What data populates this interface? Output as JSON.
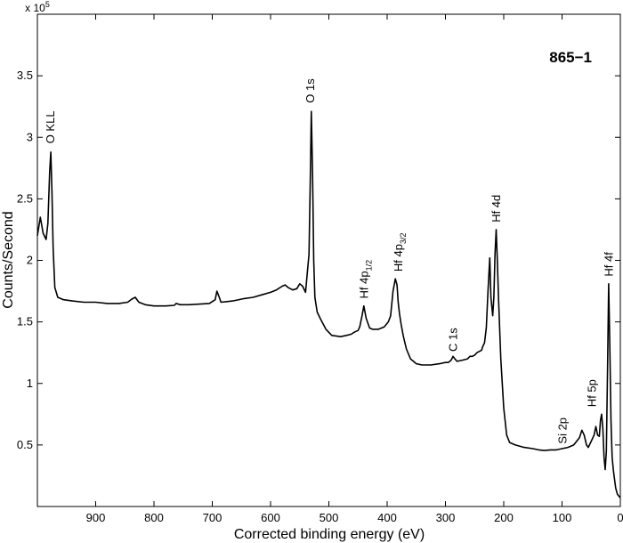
{
  "chart_data": {
    "type": "line",
    "title": "",
    "sample_label": "865−1",
    "xlabel": "Corrected binding energy (eV)",
    "ylabel": "Counts/Second",
    "y_multiplier_label": "x 10",
    "y_multiplier_exp": "5",
    "xlim": [
      1000,
      0
    ],
    "ylim": [
      0,
      4.0
    ],
    "x_reversed": true,
    "x_ticks": [
      900,
      800,
      700,
      600,
      500,
      400,
      300,
      200,
      100,
      0
    ],
    "y_ticks": [
      0.5,
      1,
      1.5,
      2,
      2.5,
      3,
      3.5
    ],
    "grid": false,
    "line_color": "#000000",
    "series": [
      {
        "x": [
          1000,
          995,
          990,
          985,
          982,
          979,
          977,
          975,
          973,
          970,
          965,
          955,
          940,
          920,
          900,
          880,
          860,
          845,
          838,
          832,
          826,
          815,
          800,
          780,
          765,
          762,
          755,
          740,
          705,
          695,
          692,
          688,
          685,
          665,
          645,
          630,
          615,
          600,
          590,
          580,
          575,
          570,
          562,
          555,
          550,
          545,
          540,
          537,
          534,
          532,
          530,
          528,
          526,
          524,
          520,
          515,
          505,
          495,
          480,
          470,
          462,
          455,
          450,
          447,
          443,
          440,
          436,
          430,
          425,
          415,
          405,
          398,
          394,
          390,
          386,
          383,
          381,
          379,
          376,
          372,
          367,
          360,
          350,
          340,
          325,
          310,
          300,
          295,
          290,
          287,
          284,
          280,
          270,
          262,
          258,
          254,
          250,
          246,
          242,
          238,
          236,
          233,
          230,
          227,
          224,
          222,
          219,
          217,
          215,
          213,
          211,
          209,
          205,
          200,
          195,
          190,
          180,
          165,
          150,
          140,
          130,
          120,
          110,
          100,
          90,
          80,
          75,
          70,
          66,
          62,
          58,
          55,
          50,
          45,
          42,
          39,
          36,
          34,
          32,
          30,
          28,
          26,
          24,
          22,
          20,
          18,
          16,
          14,
          12,
          10,
          8,
          5,
          0
        ],
        "y": [
          2.2,
          2.35,
          2.22,
          2.17,
          2.3,
          2.72,
          2.88,
          2.55,
          2.1,
          1.78,
          1.7,
          1.68,
          1.67,
          1.66,
          1.66,
          1.65,
          1.65,
          1.66,
          1.685,
          1.7,
          1.66,
          1.64,
          1.63,
          1.63,
          1.635,
          1.65,
          1.64,
          1.64,
          1.65,
          1.68,
          1.75,
          1.7,
          1.66,
          1.67,
          1.69,
          1.7,
          1.72,
          1.74,
          1.76,
          1.79,
          1.8,
          1.78,
          1.76,
          1.77,
          1.81,
          1.79,
          1.74,
          1.9,
          2.05,
          2.6,
          3.21,
          2.7,
          2.0,
          1.7,
          1.58,
          1.53,
          1.44,
          1.39,
          1.38,
          1.39,
          1.4,
          1.42,
          1.43,
          1.46,
          1.55,
          1.63,
          1.53,
          1.45,
          1.44,
          1.44,
          1.46,
          1.5,
          1.55,
          1.75,
          1.85,
          1.8,
          1.66,
          1.57,
          1.48,
          1.38,
          1.28,
          1.2,
          1.16,
          1.15,
          1.15,
          1.16,
          1.17,
          1.17,
          1.19,
          1.22,
          1.2,
          1.18,
          1.19,
          1.2,
          1.22,
          1.22,
          1.23,
          1.25,
          1.26,
          1.27,
          1.3,
          1.33,
          1.45,
          1.75,
          2.02,
          1.7,
          1.55,
          1.7,
          2.05,
          2.25,
          2.0,
          1.7,
          1.2,
          0.8,
          0.58,
          0.52,
          0.5,
          0.48,
          0.47,
          0.46,
          0.455,
          0.46,
          0.46,
          0.47,
          0.48,
          0.5,
          0.53,
          0.56,
          0.62,
          0.58,
          0.5,
          0.48,
          0.53,
          0.58,
          0.65,
          0.58,
          0.57,
          0.7,
          0.75,
          0.63,
          0.4,
          0.3,
          0.45,
          1.1,
          1.81,
          1.3,
          0.7,
          0.4,
          0.3,
          0.22,
          0.15,
          0.1,
          0.07
        ]
      }
    ],
    "annotations": [
      {
        "text": "O KLL",
        "x": 971,
        "y": 2.92
      },
      {
        "text": "O 1s",
        "x": 525,
        "y": 3.25
      },
      {
        "text": "Hf 4p",
        "sub": "1/2",
        "x": 433,
        "y": 1.66
      },
      {
        "text": "Hf 4p",
        "sub": "3/2",
        "x": 374,
        "y": 1.88
      },
      {
        "text": "C 1s",
        "x": 280,
        "y": 1.23
      },
      {
        "text": "Hf 4d",
        "x": 206,
        "y": 2.28
      },
      {
        "text": "Si 2p",
        "x": 92,
        "y": 0.48
      },
      {
        "text": "Hf 5p",
        "x": 42,
        "y": 0.78
      },
      {
        "text": "Hf 4f",
        "x": 13,
        "y": 1.84
      }
    ]
  }
}
